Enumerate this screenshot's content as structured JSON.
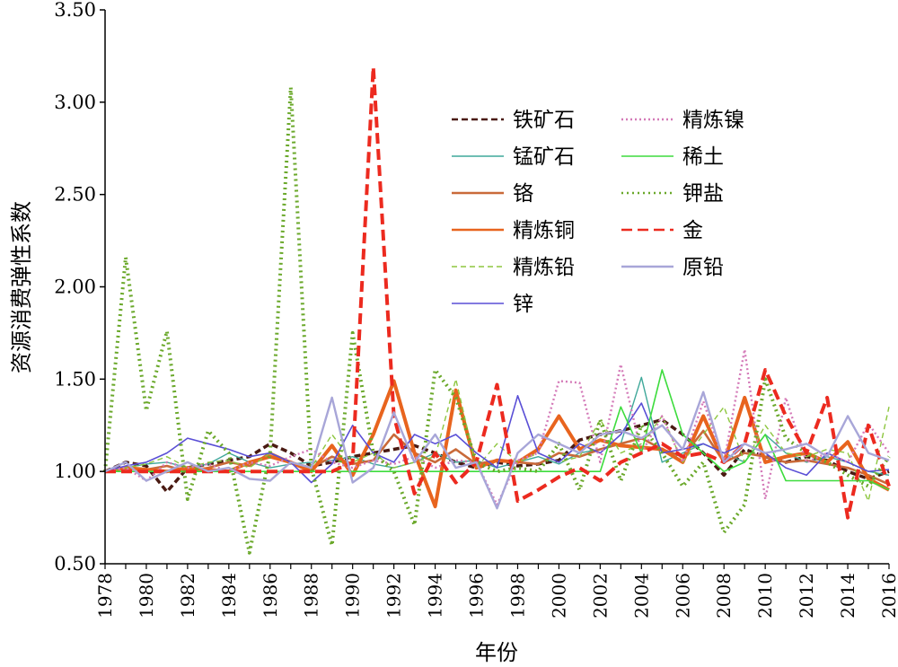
{
  "chart_data": {
    "type": "line",
    "title": "",
    "xlabel": "年份",
    "ylabel": "资源消费弹性系数",
    "ylim": [
      0.5,
      3.5
    ],
    "yticks": [
      "0.50",
      "1.00",
      "1.50",
      "2.00",
      "2.50",
      "3.00",
      "3.50"
    ],
    "xticks": [
      "1978",
      "1980",
      "1982",
      "1984",
      "1986",
      "1988",
      "1990",
      "1992",
      "1994",
      "1996",
      "1998",
      "2000",
      "2002",
      "2004",
      "2006",
      "2008",
      "2010",
      "2012",
      "2014",
      "2016"
    ],
    "grid": false,
    "legend_position": "top-right",
    "x": [
      1978,
      1979,
      1980,
      1981,
      1982,
      1983,
      1984,
      1985,
      1986,
      1987,
      1988,
      1989,
      1990,
      1991,
      1992,
      1993,
      1994,
      1995,
      1996,
      1997,
      1998,
      1999,
      2000,
      2001,
      2002,
      2003,
      2004,
      2005,
      2006,
      2007,
      2008,
      2009,
      2010,
      2011,
      2012,
      2013,
      2014,
      2015,
      2016
    ],
    "series": [
      {
        "name": "铁矿石",
        "color": "#4a1a12",
        "dash": "7,4",
        "width": 3.5,
        "values": [
          1.0,
          1.05,
          1.03,
          0.89,
          1.02,
          1.04,
          1.06,
          1.08,
          1.15,
          1.1,
          1.03,
          1.05,
          1.08,
          1.1,
          1.12,
          1.14,
          1.1,
          1.05,
          1.02,
          1.05,
          1.03,
          1.04,
          1.06,
          1.17,
          1.2,
          1.22,
          1.25,
          1.28,
          1.2,
          1.1,
          0.98,
          1.12,
          1.08,
          1.05,
          1.08,
          1.06,
          1.0,
          0.96,
          1.0
        ]
      },
      {
        "name": "锰矿石",
        "color": "#3fa89a",
        "dash": "",
        "width": 1.4,
        "values": [
          1.0,
          1.02,
          1.04,
          1.05,
          1.02,
          1.04,
          1.1,
          1.05,
          1.02,
          1.04,
          1.05,
          1.06,
          1.08,
          1.04,
          1.02,
          1.05,
          1.1,
          1.05,
          1.06,
          1.02,
          1.05,
          1.08,
          1.04,
          1.1,
          1.12,
          1.15,
          1.51,
          1.05,
          1.1,
          1.15,
          1.1,
          1.05,
          1.2,
          1.1,
          1.05,
          1.08,
          1.05,
          1.0,
          0.98
        ]
      },
      {
        "name": "铬",
        "color": "#c96a3a",
        "dash": "",
        "width": 2.6,
        "values": [
          1.0,
          1.02,
          1.01,
          1.03,
          1.0,
          1.02,
          1.05,
          1.03,
          1.1,
          1.05,
          1.02,
          1.08,
          1.04,
          1.06,
          1.2,
          1.1,
          1.05,
          1.12,
          1.04,
          1.06,
          1.05,
          1.04,
          1.1,
          1.08,
          1.12,
          1.15,
          1.18,
          1.12,
          1.08,
          1.22,
          1.05,
          1.1,
          1.08,
          1.05,
          1.06,
          1.04,
          1.02,
          0.98,
          0.93
        ]
      },
      {
        "name": "精炼铜",
        "color": "#e8641e",
        "dash": "",
        "width": 4,
        "values": [
          1.0,
          1.02,
          1.01,
          1.0,
          1.02,
          1.01,
          1.0,
          1.05,
          1.08,
          1.05,
          1.0,
          1.14,
          0.98,
          1.2,
          1.49,
          1.1,
          0.81,
          1.44,
          1.02,
          1.06,
          1.05,
          1.12,
          1.3,
          1.12,
          1.17,
          1.14,
          1.13,
          1.12,
          1.05,
          1.3,
          1.05,
          1.4,
          1.05,
          1.08,
          1.1,
          1.05,
          1.16,
          0.96,
          0.9
        ]
      },
      {
        "name": "精炼铅",
        "color": "#8dc63f",
        "dash": "6,4",
        "width": 1.4,
        "values": [
          1.0,
          1.02,
          1.04,
          1.08,
          1.02,
          1.05,
          1.06,
          1.02,
          1.1,
          1.05,
          1.02,
          1.2,
          1.05,
          1.1,
          1.02,
          1.05,
          1.08,
          1.5,
          1.02,
          1.15,
          1.05,
          1.1,
          1.05,
          1.08,
          1.28,
          1.1,
          1.15,
          1.3,
          1.05,
          1.2,
          1.35,
          1.05,
          1.25,
          1.1,
          1.08,
          1.12,
          1.1,
          0.84,
          1.35
        ]
      },
      {
        "name": "锌",
        "color": "#5a4fd6",
        "dash": "",
        "width": 1.6,
        "values": [
          1.0,
          1.03,
          1.05,
          1.1,
          1.18,
          1.15,
          1.12,
          1.08,
          1.1,
          1.05,
          0.94,
          1.04,
          1.25,
          1.1,
          1.05,
          1.2,
          1.15,
          1.2,
          1.1,
          1.02,
          1.41,
          1.1,
          1.05,
          1.15,
          1.1,
          1.2,
          1.37,
          1.1,
          1.12,
          1.15,
          1.1,
          1.15,
          1.1,
          1.02,
          0.98,
          1.1,
          1.05,
          1.0,
          1.01
        ]
      },
      {
        "name": "精炼镍",
        "color": "#d47ab8",
        "dash": "2,3",
        "width": 2.4,
        "values": [
          1.0,
          1.02,
          0.95,
          1.05,
          1.02,
          1.04,
          1.0,
          1.05,
          1.03,
          1.08,
          1.12,
          1.05,
          1.02,
          1.06,
          1.04,
          1.08,
          1.02,
          1.06,
          1.05,
          0.82,
          1.06,
          1.1,
          1.49,
          1.48,
          1.05,
          1.58,
          1.1,
          1.3,
          1.05,
          1.38,
          1.05,
          1.66,
          0.85,
          1.4,
          1.05,
          1.1,
          1.05,
          1.26,
          1.1
        ]
      },
      {
        "name": "稀土",
        "color": "#3ddc3d",
        "dash": "",
        "width": 1.6,
        "values": [
          1.0,
          1.0,
          1.0,
          1.0,
          1.0,
          1.0,
          1.0,
          1.0,
          1.0,
          1.0,
          1.0,
          1.0,
          1.0,
          1.0,
          1.0,
          1.0,
          1.0,
          1.0,
          1.0,
          1.0,
          1.0,
          1.0,
          1.0,
          1.0,
          1.0,
          1.35,
          1.1,
          1.55,
          1.2,
          1.1,
          1.0,
          1.05,
          1.2,
          0.95,
          0.95,
          0.95,
          0.95,
          0.95,
          0.9
        ]
      },
      {
        "name": "钾盐",
        "color": "#6aa82a",
        "dash": "2,4",
        "width": 4,
        "values": [
          1.0,
          2.16,
          1.33,
          1.76,
          0.85,
          1.22,
          1.1,
          0.56,
          1.1,
          3.08,
          1.02,
          0.6,
          1.75,
          1.1,
          1.0,
          0.71,
          1.55,
          1.4,
          1.05,
          1.0,
          1.02,
          1.0,
          1.15,
          0.9,
          1.28,
          0.95,
          1.25,
          1.1,
          0.92,
          1.05,
          0.67,
          0.82,
          1.5,
          1.18,
          1.1,
          1.05,
          0.98,
          0.92,
          1.08
        ]
      },
      {
        "name": "金",
        "color": "#ec2a1f",
        "dash": "12,6",
        "width": 4,
        "values": [
          1.0,
          1.0,
          1.0,
          1.0,
          1.0,
          1.0,
          1.0,
          1.0,
          1.0,
          1.0,
          1.0,
          1.0,
          1.05,
          3.19,
          1.3,
          0.88,
          1.1,
          0.94,
          1.05,
          1.47,
          0.84,
          0.9,
          0.97,
          1.02,
          0.95,
          1.05,
          1.1,
          1.15,
          1.08,
          1.1,
          1.05,
          1.15,
          1.55,
          1.3,
          1.1,
          1.4,
          0.75,
          1.25,
          0.92
        ]
      },
      {
        "name": "原铅",
        "color": "#a8a6d8",
        "dash": "",
        "width": 2.4,
        "values": [
          1.0,
          1.05,
          0.95,
          1.0,
          1.05,
          1.0,
          1.02,
          0.96,
          0.95,
          1.05,
          1.02,
          1.4,
          0.94,
          1.02,
          1.32,
          1.05,
          1.2,
          1.02,
          1.05,
          0.8,
          1.1,
          1.2,
          1.15,
          1.1,
          1.2,
          1.22,
          1.18,
          1.25,
          1.12,
          1.43,
          1.05,
          1.15,
          1.1,
          1.12,
          1.15,
          1.08,
          1.3,
          1.1,
          1.06
        ]
      }
    ]
  }
}
